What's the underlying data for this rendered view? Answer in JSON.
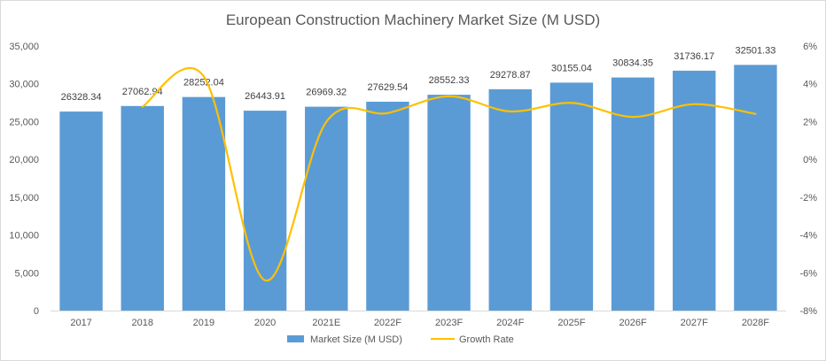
{
  "chart_data": {
    "type": "bar",
    "title": "European Construction Machinery Market Size (M USD)",
    "categories": [
      "2017",
      "2018",
      "2019",
      "2020",
      "2021E",
      "2022F",
      "2023F",
      "2024F",
      "2025F",
      "2026F",
      "2027F",
      "2028F"
    ],
    "series": [
      {
        "name": "Market Size (M USD)",
        "type": "bar",
        "axis": "left",
        "color": "#5b9bd5",
        "values": [
          26328.34,
          27062.94,
          28252.04,
          26443.91,
          26969.32,
          27629.54,
          28552.33,
          29278.87,
          30155.04,
          30834.35,
          31736.17,
          32501.33
        ],
        "labels": [
          "26328.34",
          "27062.94",
          "28252.04",
          "26443.91",
          "26969.32",
          "27629.54",
          "28552.33",
          "29278.87",
          "30155.04",
          "30834.35",
          "31736.17",
          "32501.33"
        ]
      },
      {
        "name": "Growth Rate",
        "type": "line",
        "axis": "right",
        "color": "#ffc000",
        "values": [
          null,
          2.79,
          4.39,
          -6.4,
          1.99,
          2.45,
          3.34,
          2.54,
          2.99,
          2.25,
          2.92,
          2.41
        ]
      }
    ],
    "y_left": {
      "min": 0,
      "max": 35000,
      "ticks": [
        "0",
        "5,000",
        "10,000",
        "15,000",
        "20,000",
        "25,000",
        "30,000",
        "35,000"
      ]
    },
    "y_right": {
      "min": -8,
      "max": 6,
      "ticks": [
        "-8%",
        "-6%",
        "-4%",
        "-2%",
        "0%",
        "2%",
        "4%",
        "6%"
      ]
    },
    "legend_position": "bottom",
    "grid": false
  }
}
